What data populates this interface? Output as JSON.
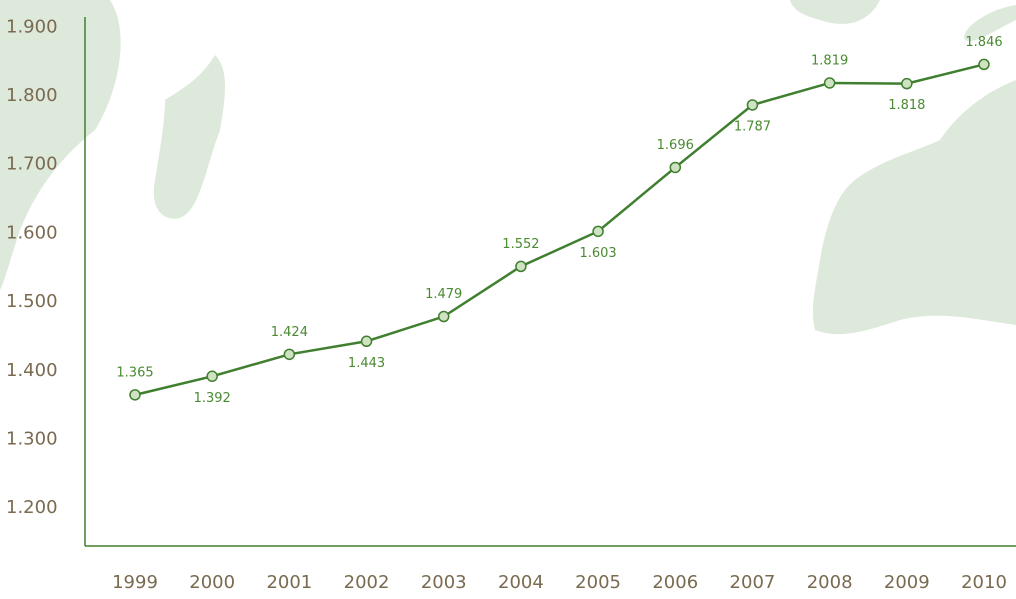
{
  "chart_data": {
    "type": "line",
    "categories": [
      "1999",
      "2000",
      "2001",
      "2002",
      "2003",
      "2004",
      "2005",
      "2006",
      "2007",
      "2008",
      "2009",
      "2010"
    ],
    "values": [
      1365,
      1392,
      1424,
      1443,
      1479,
      1552,
      1603,
      1696,
      1787,
      1819,
      1818,
      1846
    ],
    "value_labels": [
      "1.365",
      "1.392",
      "1.424",
      "1.443",
      "1.479",
      "1.552",
      "1.603",
      "1.696",
      "1.787",
      "1.819",
      "1.818",
      "1.846"
    ],
    "color": "#3f7f2f",
    "ylim": [
      1145,
      1915
    ],
    "yticks": [
      {
        "value": 1200,
        "label": "1.200"
      },
      {
        "value": 1300,
        "label": "1.300"
      },
      {
        "value": 1400,
        "label": "1.400"
      },
      {
        "value": 1500,
        "label": "1.500"
      },
      {
        "value": 1600,
        "label": "1.600"
      },
      {
        "value": 1700,
        "label": "1.700"
      },
      {
        "value": 1800,
        "label": "1.800"
      },
      {
        "value": 1900,
        "label": "1.900"
      }
    ],
    "grid": false
  }
}
